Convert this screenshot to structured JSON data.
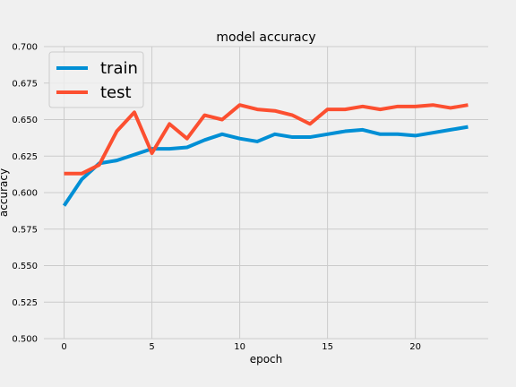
{
  "chart_data": {
    "type": "line",
    "title": "model accuracy",
    "xlabel": "epoch",
    "ylabel": "accuracy",
    "xlim": [
      -1.15,
      24.15
    ],
    "ylim": [
      0.5,
      0.7
    ],
    "x_ticks": [
      0,
      5,
      10,
      15,
      20
    ],
    "y_ticks": [
      "0.500",
      "0.525",
      "0.550",
      "0.575",
      "0.600",
      "0.625",
      "0.650",
      "0.675",
      "0.700"
    ],
    "grid": true,
    "legend_position": "top-left",
    "x": [
      0,
      1,
      2,
      3,
      4,
      5,
      6,
      7,
      8,
      9,
      10,
      11,
      12,
      13,
      14,
      15,
      16,
      17,
      18,
      19,
      20,
      21,
      22,
      23
    ],
    "series": [
      {
        "name": "train",
        "color": "#008fd5",
        "values": [
          0.591,
          0.609,
          0.62,
          0.622,
          0.626,
          0.63,
          0.63,
          0.631,
          0.636,
          0.64,
          0.637,
          0.635,
          0.64,
          0.638,
          0.638,
          0.64,
          0.642,
          0.643,
          0.64,
          0.64,
          0.639,
          0.641,
          0.643,
          0.645
        ]
      },
      {
        "name": "test",
        "color": "#fc4f30",
        "values": [
          0.613,
          0.613,
          0.619,
          0.642,
          0.655,
          0.627,
          0.647,
          0.637,
          0.653,
          0.65,
          0.66,
          0.657,
          0.656,
          0.653,
          0.647,
          0.657,
          0.657,
          0.659,
          0.657,
          0.659,
          0.659,
          0.66,
          0.658,
          0.66
        ]
      }
    ]
  }
}
